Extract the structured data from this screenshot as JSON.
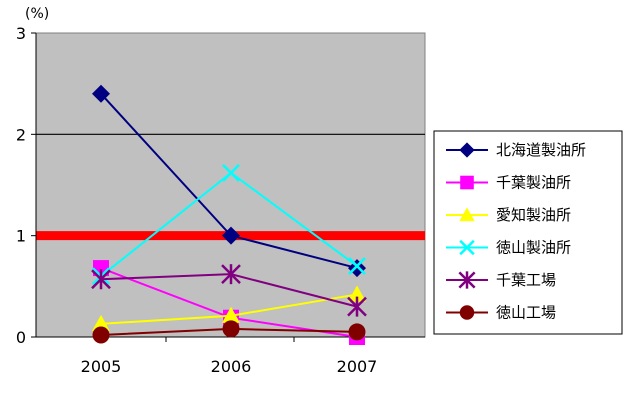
{
  "chart_data": {
    "type": "line",
    "title": "",
    "xlabel": "",
    "ylabel": "(%)",
    "x": [
      "2005",
      "2006",
      "2007"
    ],
    "ylim": [
      0,
      3
    ],
    "y_ticks": [
      "0",
      "1",
      "2",
      "3"
    ],
    "grid": true,
    "legend_position": "right",
    "reference_line": {
      "value": 1,
      "color": "#ff0000"
    },
    "plot_background": "#c0c0c0",
    "series": [
      {
        "name": "北海道製油所",
        "values": [
          2.4,
          1.0,
          0.68
        ],
        "color": "#000080",
        "marker": "diamond"
      },
      {
        "name": "千葉製油所",
        "values": [
          0.68,
          0.19,
          0.0
        ],
        "color": "#ff00ff",
        "marker": "square"
      },
      {
        "name": "愛知製油所",
        "values": [
          0.13,
          0.21,
          0.42
        ],
        "color": "#ffff00",
        "marker": "triangle"
      },
      {
        "name": "徳山製油所",
        "values": [
          0.6,
          1.62,
          0.7
        ],
        "color": "#00ffff",
        "marker": "x"
      },
      {
        "name": "千葉工場",
        "values": [
          0.57,
          0.62,
          0.3
        ],
        "color": "#800080",
        "marker": "asterisk"
      },
      {
        "name": "徳山工場",
        "values": [
          0.02,
          0.08,
          0.05
        ],
        "color": "#800000",
        "marker": "circle"
      }
    ]
  }
}
